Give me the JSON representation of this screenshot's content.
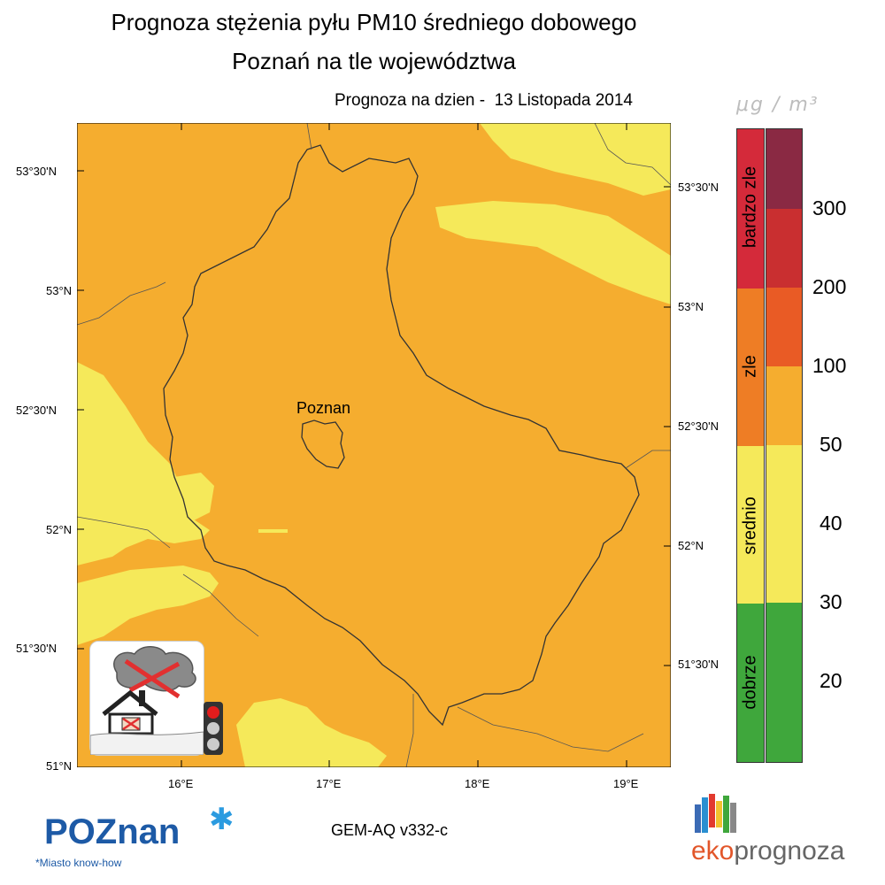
{
  "title_line1": "Prognoza stężenia pyłu PM10 średniego dobowego",
  "title_line2": "Poznań na tle województwa",
  "forecast_date_text": "Prognoza na dzien -  13 Listopada 2014",
  "unit": "μg / m³",
  "city_label": "Poznan",
  "lat_labels_left": [
    "53°30'N",
    "53°N",
    "52°30'N",
    "52°N",
    "51°30'N",
    "51°N"
  ],
  "lat_labels_right": [
    "53°30'N",
    "53°N",
    "52°30'N",
    "52°N",
    "51°30'N"
  ],
  "lon_labels": [
    "16°E",
    "17°E",
    "18°E",
    "19°E"
  ],
  "legend": {
    "categories": [
      {
        "label": "bardzo zle",
        "color": "#d42a3a"
      },
      {
        "label": "zle",
        "color": "#ee7d25"
      },
      {
        "label": "srednio",
        "color": "#f5e95a"
      },
      {
        "label": "dobrze",
        "color": "#3fa73c"
      }
    ],
    "levels": [
      {
        "color": "#8a2943"
      },
      {
        "color": "#c92f30"
      },
      {
        "color": "#e95b25"
      },
      {
        "color": "#f5ad2f"
      },
      {
        "color": "#f5e95a"
      },
      {
        "color": "#f5e95a"
      },
      {
        "color": "#3fa73c"
      },
      {
        "color": "#3fa73c"
      }
    ],
    "thresholds": [
      "300",
      "200",
      "100",
      "50",
      "40",
      "30",
      "20"
    ]
  },
  "map_colors": {
    "orange": "#f5ad2f",
    "yellow": "#f5e95a"
  },
  "model_label": "GEM-AQ v332-c",
  "poznan_logo": {
    "text": "POZnan",
    "tagline": "*Miasto know-how"
  },
  "eko_logo": {
    "prefix": "eko",
    "suffix": "prognoza"
  }
}
